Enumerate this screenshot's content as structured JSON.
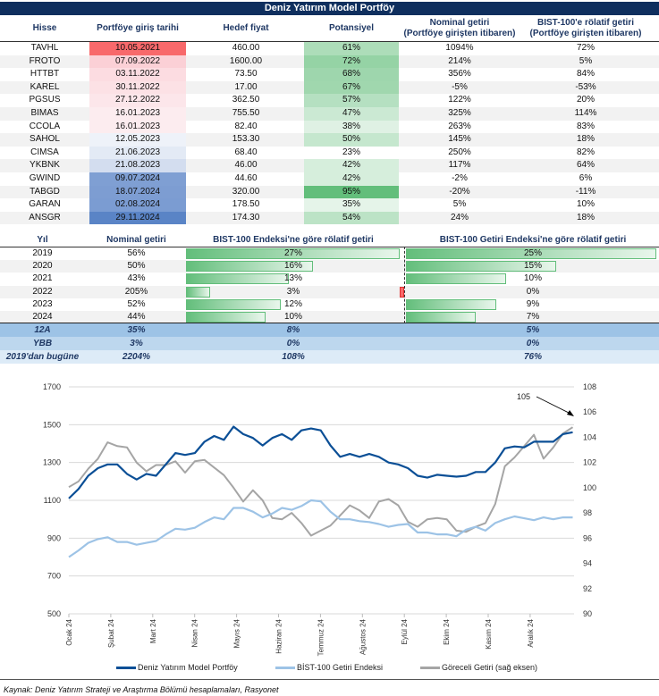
{
  "title": "Deniz Yatırım Model Portföy",
  "portfolio": {
    "headers": [
      "Hisse",
      "Portföye giriş tarihi",
      "Hedef fiyat",
      "Potansiyel",
      "Nominal getiri",
      "(Portföye girişten itibaren)",
      "BIST-100'e rölatif getiri",
      "(Portföye girişten itibaren)"
    ],
    "rows": [
      {
        "ticker": "TAVHL",
        "date": "10.05.2021",
        "target": "460.00",
        "potential": "61%",
        "nominal": "1094%",
        "relative": "72%",
        "date_color": "#f8696b"
      },
      {
        "ticker": "FROTO",
        "date": "07.09.2022",
        "target": "1600.00",
        "potential": "72%",
        "nominal": "214%",
        "relative": "5%",
        "date_color": "#fbd0d6"
      },
      {
        "ticker": "HTTBT",
        "date": "03.11.2022",
        "target": "73.50",
        "potential": "68%",
        "nominal": "356%",
        "relative": "84%",
        "date_color": "#fcdce1"
      },
      {
        "ticker": "KAREL",
        "date": "30.11.2022",
        "target": "17.00",
        "potential": "67%",
        "nominal": "-5%",
        "relative": "-53%",
        "date_color": "#fce1e5"
      },
      {
        "ticker": "PGSUS",
        "date": "27.12.2022",
        "target": "362.50",
        "potential": "57%",
        "nominal": "122%",
        "relative": "20%",
        "date_color": "#fce6ea"
      },
      {
        "ticker": "BIMAS",
        "date": "16.01.2023",
        "target": "755.50",
        "potential": "47%",
        "nominal": "325%",
        "relative": "114%",
        "date_color": "#fcecef"
      },
      {
        "ticker": "CCOLA",
        "date": "16.01.2023",
        "target": "82.40",
        "potential": "38%",
        "nominal": "263%",
        "relative": "83%",
        "date_color": "#fcecef"
      },
      {
        "ticker": "SAHOL",
        "date": "12.05.2023",
        "target": "153.30",
        "potential": "50%",
        "nominal": "145%",
        "relative": "18%",
        "date_color": "#eef2f9"
      },
      {
        "ticker": "CIMSA",
        "date": "21.06.2023",
        "target": "68.40",
        "potential": "23%",
        "nominal": "250%",
        "relative": "82%",
        "date_color": "#e3eaf5"
      },
      {
        "ticker": "YKBNK",
        "date": "21.08.2023",
        "target": "46.00",
        "potential": "42%",
        "nominal": "117%",
        "relative": "64%",
        "date_color": "#d3ddef"
      },
      {
        "ticker": "GWIND",
        "date": "09.07.2024",
        "target": "44.60",
        "potential": "42%",
        "nominal": "-2%",
        "relative": "6%",
        "date_color": "#7f9fd3"
      },
      {
        "ticker": "TABGD",
        "date": "18.07.2024",
        "target": "320.00",
        "potential": "95%",
        "nominal": "-20%",
        "relative": "-11%",
        "date_color": "#7d9dd2"
      },
      {
        "ticker": "GARAN",
        "date": "02.08.2024",
        "target": "178.50",
        "potential": "35%",
        "nominal": "5%",
        "relative": "10%",
        "date_color": "#7b9cd2"
      },
      {
        "ticker": "ANSGR",
        "date": "29.11.2024",
        "target": "174.30",
        "potential": "54%",
        "nominal": "24%",
        "relative": "18%",
        "date_color": "#5a84c6"
      }
    ]
  },
  "annual": {
    "headers": [
      "Yıl",
      "Nominal getiri",
      "BIST-100 Endeksi'ne göre rölatif getiri",
      "BIST-100 Getiri Endeksi'ne göre rölatif getiri"
    ],
    "rows": [
      {
        "year": "2019",
        "nominal": "56%",
        "rel_bist": "27%",
        "rel_getiri": "25%",
        "rel_bist_value": 27,
        "rel_getiri_value": 25
      },
      {
        "year": "2020",
        "nominal": "50%",
        "rel_bist": "16%",
        "rel_getiri": "15%",
        "rel_bist_value": 16,
        "rel_getiri_value": 15
      },
      {
        "year": "2021",
        "nominal": "43%",
        "rel_bist": "13%",
        "rel_getiri": "10%",
        "rel_bist_value": 13,
        "rel_getiri_value": 10
      },
      {
        "year": "2022",
        "nominal": "205%",
        "rel_bist": "3%",
        "rel_getiri": "0%",
        "rel_bist_value": 3,
        "rel_getiri_value": -0.4
      },
      {
        "year": "2023",
        "nominal": "52%",
        "rel_bist": "12%",
        "rel_getiri": "9%",
        "rel_bist_value": 12,
        "rel_getiri_value": 9
      },
      {
        "year": "2024",
        "nominal": "44%",
        "rel_bist": "10%",
        "rel_getiri": "7%",
        "rel_bist_value": 10,
        "rel_getiri_value": 7
      }
    ],
    "summary": [
      {
        "label": "12A",
        "nominal": "35%",
        "rel_bist": "8%",
        "rel_getiri": "5%",
        "bg": "#9dc3e6"
      },
      {
        "label": "YBB",
        "nominal": "3%",
        "rel_bist": "0%",
        "rel_getiri": "0%",
        "bg": "#bdd7ee"
      },
      {
        "label": "2019'dan bugüne",
        "nominal": "2204%",
        "rel_bist": "108%",
        "rel_getiri": "76%",
        "bg": "#ddebf7"
      }
    ]
  },
  "chart_data": {
    "type": "line",
    "y_left": {
      "range": [
        500,
        1700
      ],
      "ticks": [
        "1700",
        "1500",
        "1300",
        "1100",
        "900",
        "700",
        "500"
      ]
    },
    "y_right": {
      "range": [
        90,
        108
      ],
      "ticks": [
        "108",
        "106",
        "104",
        "102",
        "100",
        "98",
        "96",
        "94",
        "92",
        "90"
      ]
    },
    "x_ticks": [
      "Ocak 24",
      "Şubat 24",
      "Mart 24",
      "Nisan 24",
      "Mayıs 24",
      "Haziran 24",
      "Temmuz 24",
      "Ağustos 24",
      "Eylül 24",
      "Ekim 24",
      "Kasım 24",
      "Aralık 24"
    ],
    "x_range": [
      "2024-01-01",
      "2024-12-31"
    ],
    "x_start": "2024-01-01",
    "x_step_days": 7,
    "grid": true,
    "legend_position": "bottom",
    "annotation": "105",
    "series": [
      {
        "name": "Deniz Yatırım Model Portföy",
        "axis": "left",
        "color": "#0b4f96",
        "values": [
          1110,
          1160,
          1230,
          1270,
          1290,
          1290,
          1240,
          1210,
          1240,
          1230,
          1290,
          1350,
          1340,
          1350,
          1410,
          1440,
          1420,
          1490,
          1450,
          1430,
          1390,
          1430,
          1450,
          1420,
          1470,
          1480,
          1470,
          1390,
          1330,
          1345,
          1330,
          1345,
          1330,
          1300,
          1290,
          1270,
          1230,
          1220,
          1235,
          1230,
          1225,
          1230,
          1250,
          1250,
          1300,
          1375,
          1385,
          1380,
          1410,
          1410,
          1410,
          1450,
          1460
        ]
      },
      {
        "name": "BİST-100 Getiri Endeksi",
        "axis": "left",
        "color": "#9dc3e6",
        "values": [
          800,
          835,
          875,
          895,
          905,
          880,
          880,
          865,
          875,
          885,
          920,
          950,
          945,
          955,
          985,
          1010,
          1000,
          1060,
          1060,
          1040,
          1010,
          1030,
          1060,
          1050,
          1070,
          1100,
          1095,
          1040,
          1000,
          1000,
          990,
          985,
          975,
          960,
          970,
          975,
          930,
          930,
          920,
          920,
          910,
          945,
          960,
          940,
          980,
          1000,
          1015,
          1005,
          995,
          1010,
          1000,
          1010,
          1010
        ]
      },
      {
        "name": "Göreceli Getiri (sağ eksen)",
        "axis": "right",
        "color": "#a5a5a5",
        "values": [
          100.05,
          100.5,
          101.5,
          102.3,
          103.6,
          103.3,
          103.2,
          102.0,
          101.3,
          101.8,
          101.8,
          102.1,
          101.2,
          102.1,
          102.2,
          101.6,
          101.0,
          100.0,
          98.9,
          99.8,
          99.0,
          97.6,
          97.5,
          98.0,
          97.2,
          96.2,
          96.6,
          97.0,
          97.8,
          98.6,
          98.2,
          97.6,
          98.9,
          99.1,
          98.6,
          97.3,
          96.9,
          97.5,
          97.6,
          97.5,
          96.6,
          96.5,
          96.9,
          97.2,
          98.7,
          101.7,
          102.4,
          103.3,
          104.2,
          102.3,
          103.2,
          104.3,
          104.8
        ]
      }
    ]
  },
  "source": "Kaynak: Deniz Yatırım Strateji ve Araştırma Bölümü hesaplamaları, Rasyonet"
}
